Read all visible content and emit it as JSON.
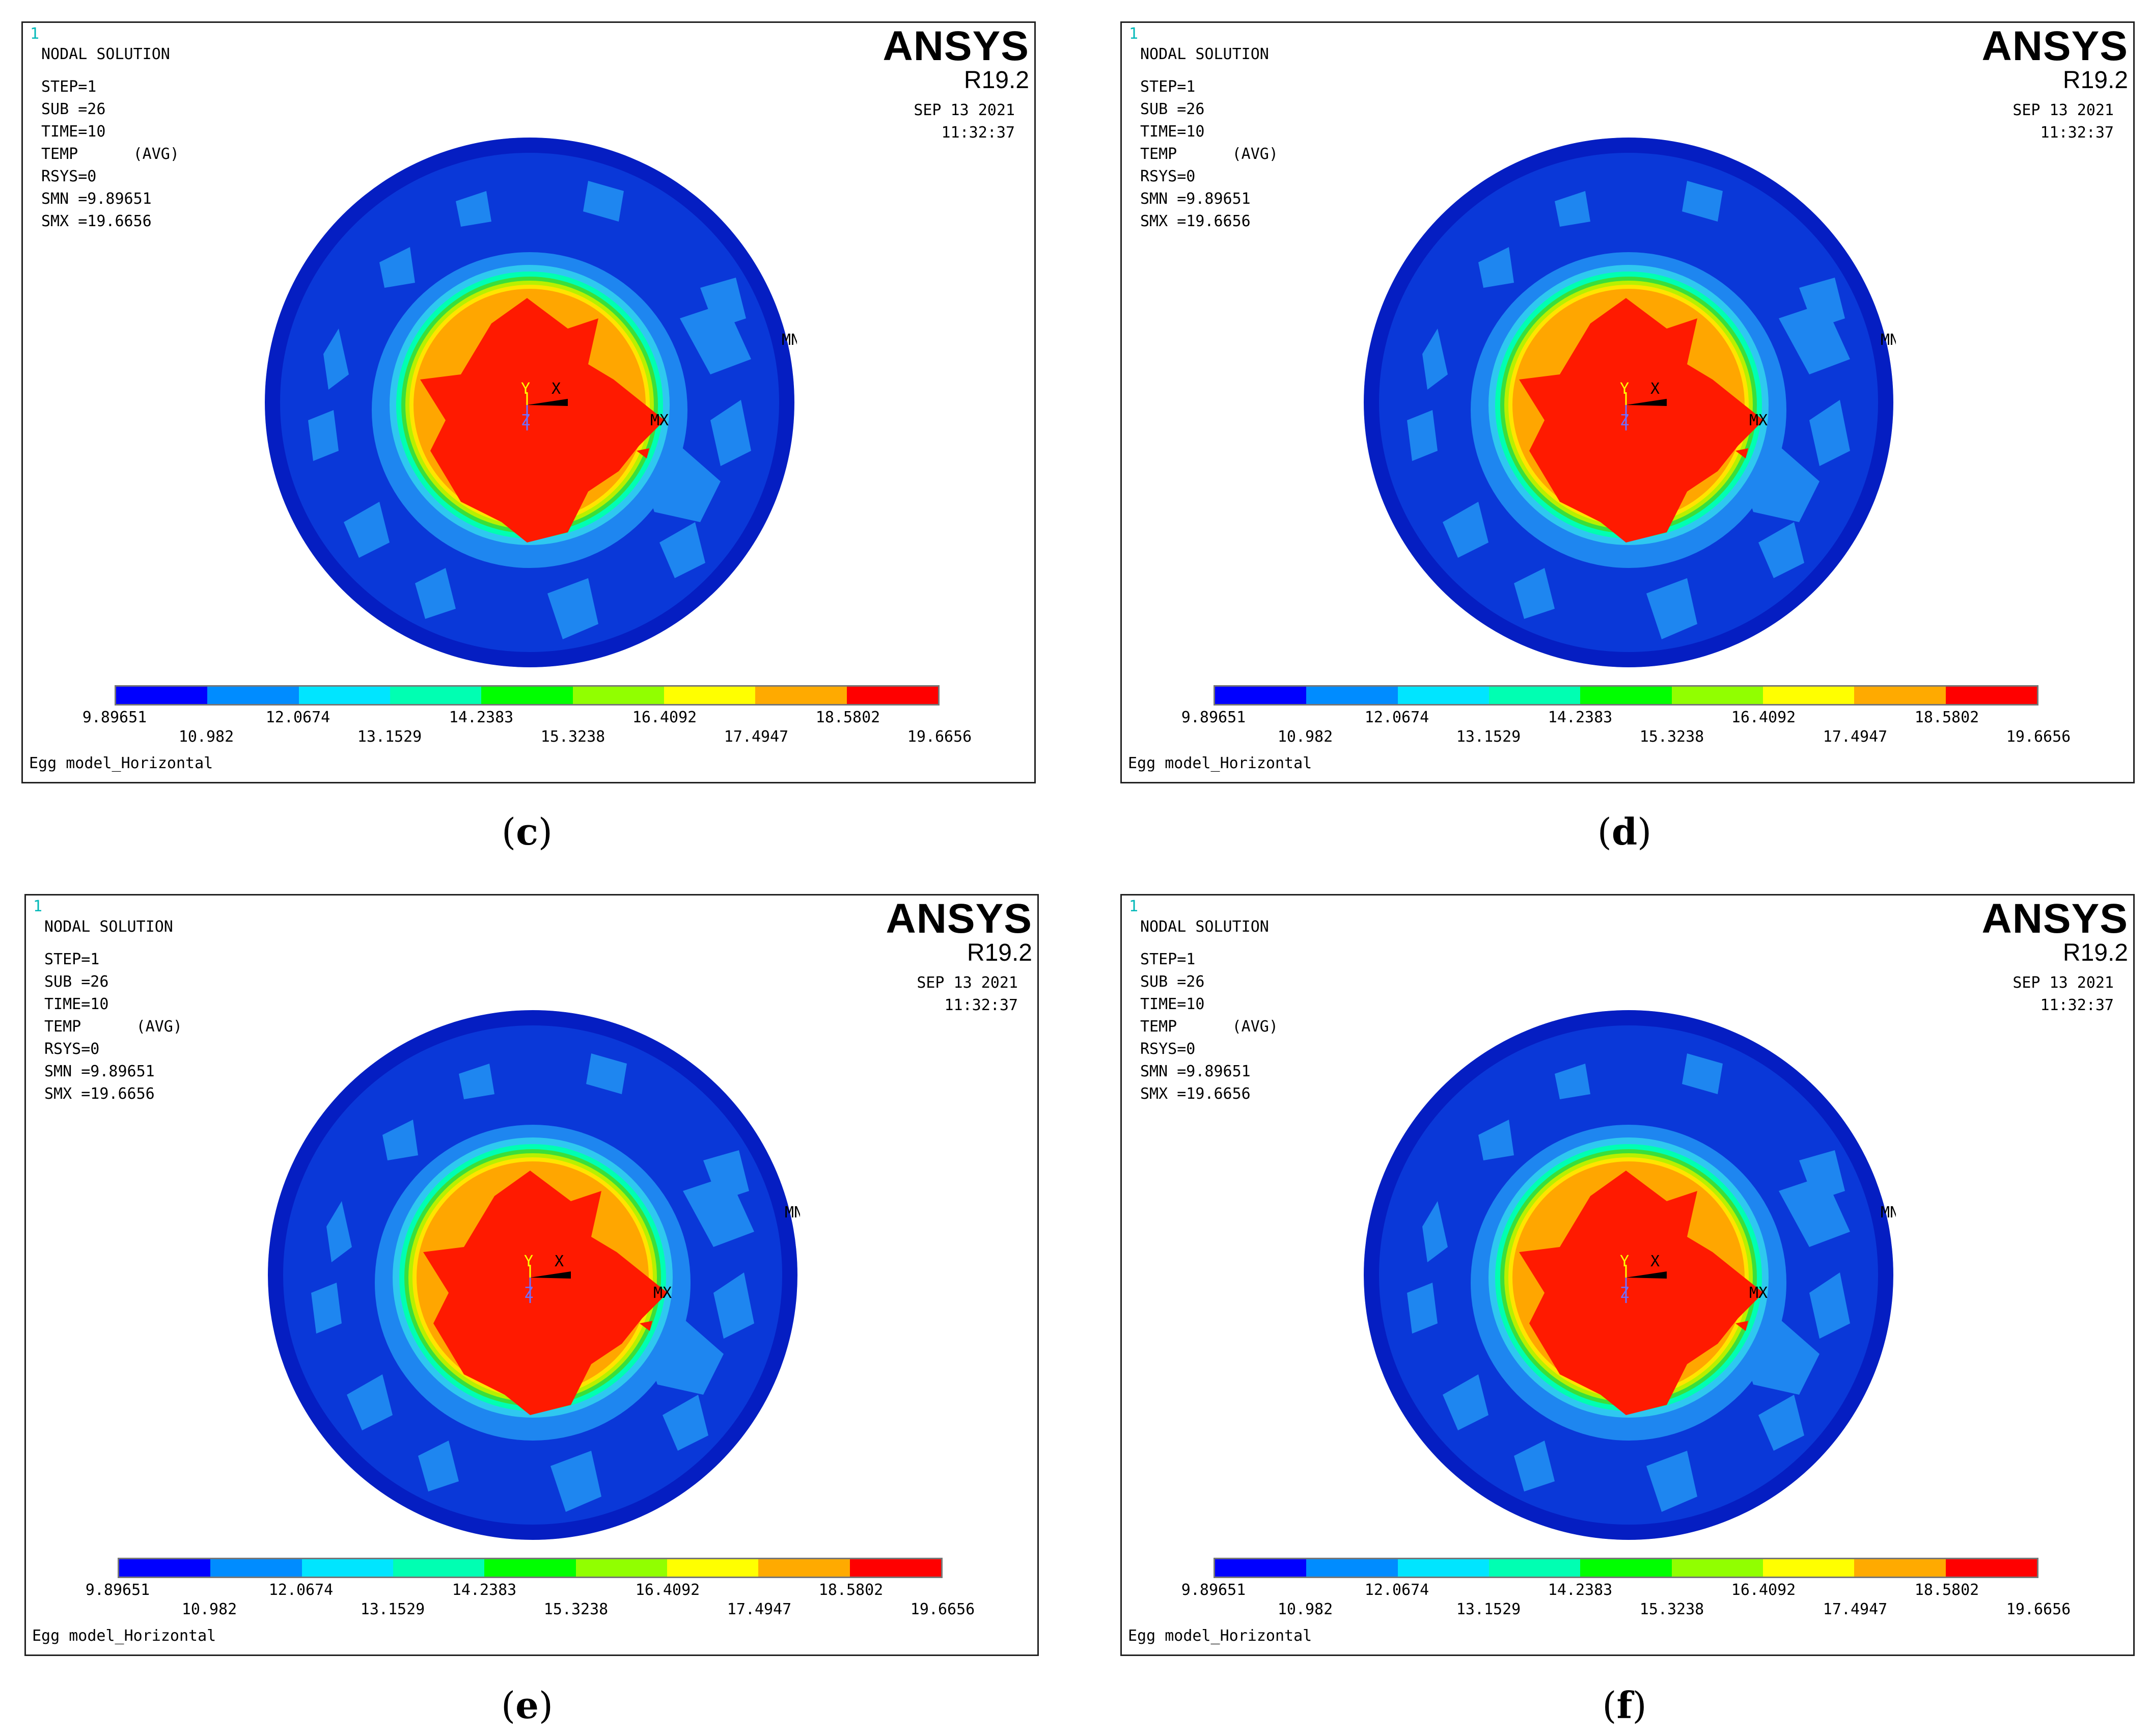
{
  "header": {
    "frame_no": "1",
    "title": "NODAL SOLUTION",
    "step": "STEP=1",
    "sub": "SUB =26",
    "time": "TIME=10",
    "temp": "TEMP      (AVG)",
    "rsys": "RSYS=0",
    "smn": "SMN =9.89651",
    "smx": "SMX =19.6656"
  },
  "brand": {
    "name": "ANSYS",
    "release": "R19.2"
  },
  "stamp": {
    "date": "SEP 13 2021",
    "time": "11:32:37"
  },
  "markers": {
    "mn": "MN",
    "mx": "MX",
    "y_axis": "Y",
    "x_axis": "X",
    "z_axis": "Z"
  },
  "legend": {
    "colors": [
      "#0000ff",
      "#008cff",
      "#00e5ff",
      "#00ffb2",
      "#00ff00",
      "#91ff00",
      "#ffff00",
      "#ffaa00",
      "#ff0000"
    ],
    "labels_top": [
      "9.89651",
      "12.0674",
      "14.2383",
      "16.4092",
      "18.5802"
    ],
    "labels_bottom": [
      "10.982",
      "13.1529",
      "15.3238",
      "17.4947",
      "19.6656"
    ]
  },
  "plot_title": "Egg model_Horizontal",
  "panels": [
    {
      "letter": "c"
    },
    {
      "letter": "d"
    },
    {
      "letter": "e"
    },
    {
      "letter": "f"
    }
  ]
}
